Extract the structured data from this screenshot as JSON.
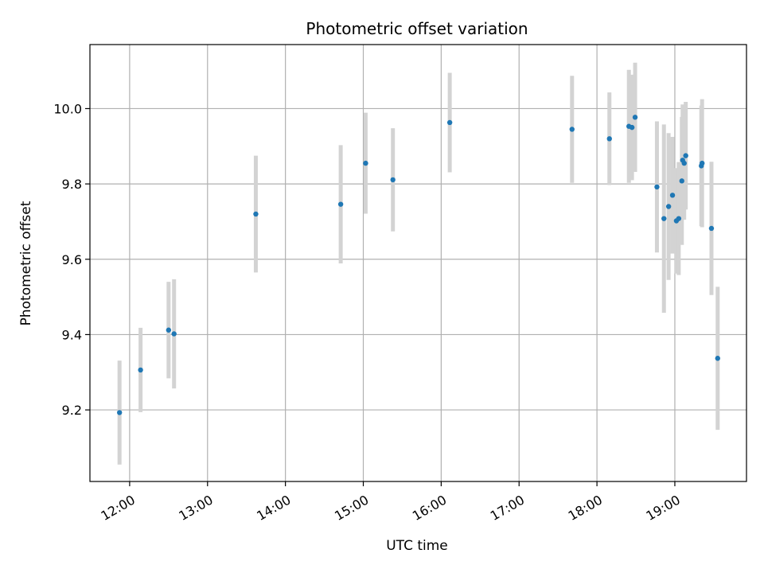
{
  "chart_data": {
    "type": "scatter",
    "title": "Photometric offset variation",
    "xlabel": "UTC time",
    "ylabel": "Photometric offset",
    "x_unit": "hours",
    "xlim": [
      11.49,
      19.92
    ],
    "ylim": [
      9.01,
      10.17
    ],
    "grid": true,
    "colors": {
      "point": "#1f77b4",
      "errorbar": "#d3d3d3",
      "grid": "#b0b0b0"
    },
    "x_ticks": [
      {
        "value": 12,
        "label": "12:00"
      },
      {
        "value": 13,
        "label": "13:00"
      },
      {
        "value": 14,
        "label": "14:00"
      },
      {
        "value": 15,
        "label": "15:00"
      },
      {
        "value": 16,
        "label": "16:00"
      },
      {
        "value": 17,
        "label": "17:00"
      },
      {
        "value": 18,
        "label": "18:00"
      },
      {
        "value": 19,
        "label": "19:00"
      }
    ],
    "y_ticks": [
      {
        "value": 9.2,
        "label": "9.2"
      },
      {
        "value": 9.4,
        "label": "9.4"
      },
      {
        "value": 9.6,
        "label": "9.6"
      },
      {
        "value": 9.8,
        "label": "9.8"
      },
      {
        "value": 10.0,
        "label": "10.0"
      }
    ],
    "points": [
      {
        "x": 11.87,
        "y": 9.193,
        "err": 0.138
      },
      {
        "x": 12.14,
        "y": 9.306,
        "err": 0.112
      },
      {
        "x": 12.5,
        "y": 9.412,
        "err": 0.128
      },
      {
        "x": 12.57,
        "y": 9.402,
        "err": 0.145
      },
      {
        "x": 13.62,
        "y": 9.72,
        "err": 0.155
      },
      {
        "x": 14.71,
        "y": 9.746,
        "err": 0.157
      },
      {
        "x": 15.03,
        "y": 9.855,
        "err": 0.134
      },
      {
        "x": 15.38,
        "y": 9.811,
        "err": 0.137
      },
      {
        "x": 16.11,
        "y": 9.963,
        "err": 0.132
      },
      {
        "x": 17.68,
        "y": 9.945,
        "err": 0.142
      },
      {
        "x": 18.16,
        "y": 9.92,
        "err": 0.123
      },
      {
        "x": 18.41,
        "y": 9.953,
        "err": 0.15
      },
      {
        "x": 18.45,
        "y": 9.95,
        "err": 0.14
      },
      {
        "x": 18.49,
        "y": 9.977,
        "err": 0.145
      },
      {
        "x": 18.77,
        "y": 9.792,
        "err": 0.174
      },
      {
        "x": 18.86,
        "y": 9.708,
        "err": 0.25
      },
      {
        "x": 18.92,
        "y": 9.74,
        "err": 0.195
      },
      {
        "x": 18.97,
        "y": 9.77,
        "err": 0.155
      },
      {
        "x": 19.02,
        "y": 9.702,
        "err": 0.14
      },
      {
        "x": 19.05,
        "y": 9.708,
        "err": 0.15
      },
      {
        "x": 19.09,
        "y": 9.808,
        "err": 0.17
      },
      {
        "x": 19.1,
        "y": 9.863,
        "err": 0.148
      },
      {
        "x": 19.12,
        "y": 9.855,
        "err": 0.15
      },
      {
        "x": 19.14,
        "y": 9.875,
        "err": 0.143
      },
      {
        "x": 19.34,
        "y": 9.848,
        "err": 0.16
      },
      {
        "x": 19.35,
        "y": 9.855,
        "err": 0.17
      },
      {
        "x": 19.47,
        "y": 9.682,
        "err": 0.177
      },
      {
        "x": 19.55,
        "y": 9.337,
        "err": 0.19
      }
    ]
  }
}
